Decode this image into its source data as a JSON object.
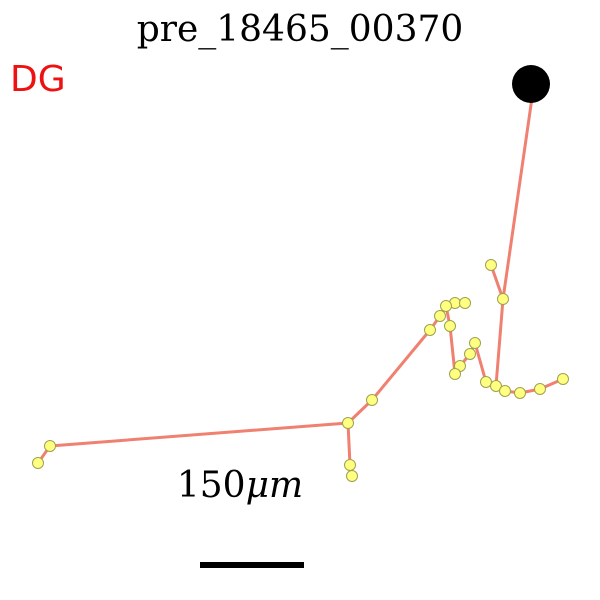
{
  "title": "pre_18465_00370",
  "region_label": "DG",
  "scale_bar": {
    "label_number": "150",
    "label_unit": "μm"
  },
  "colors": {
    "branch": "#f08070",
    "node_fill": "#ffff80",
    "node_stroke": "#a0a050",
    "soma": "#000000",
    "region": "#ee1111",
    "text": "#000000"
  },
  "icons": {
    "soma": "soma-icon",
    "node": "node-icon"
  }
}
